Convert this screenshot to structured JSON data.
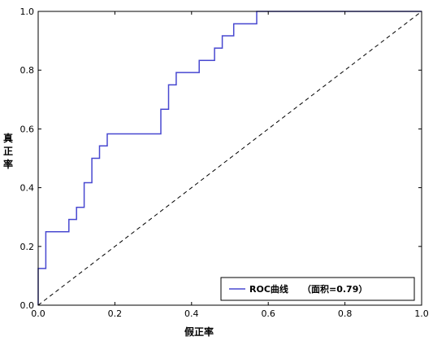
{
  "chart_data": {
    "type": "line",
    "xlabel": "假正率",
    "ylabel": "真正率",
    "xlim": [
      0,
      1
    ],
    "ylim": [
      0,
      1
    ],
    "x_ticks": [
      "0.0",
      "0.2",
      "0.4",
      "0.6",
      "0.8",
      "1.0"
    ],
    "y_ticks": [
      "0.0",
      "0.2",
      "0.4",
      "0.6",
      "0.8",
      "1.0"
    ],
    "grid": false,
    "legend_position": "bottom-right",
    "legend": {
      "series_name": "ROC曲线",
      "area_text": "（面积=0.79）"
    },
    "series": [
      {
        "name": "ROC曲线",
        "color": "#4848d0",
        "style": "solid",
        "x": [
          0,
          0,
          0.02,
          0.02,
          0.08,
          0.08,
          0.1,
          0.1,
          0.12,
          0.12,
          0.14,
          0.14,
          0.16,
          0.16,
          0.18,
          0.18,
          0.32,
          0.32,
          0.34,
          0.34,
          0.36,
          0.36,
          0.42,
          0.42,
          0.46,
          0.46,
          0.48,
          0.48,
          0.51,
          0.51,
          0.57,
          0.57,
          1.0
        ],
        "y": [
          0,
          0.125,
          0.125,
          0.25,
          0.25,
          0.292,
          0.292,
          0.333,
          0.333,
          0.417,
          0.417,
          0.5,
          0.5,
          0.542,
          0.542,
          0.583,
          0.583,
          0.667,
          0.667,
          0.75,
          0.75,
          0.792,
          0.792,
          0.833,
          0.833,
          0.875,
          0.875,
          0.917,
          0.917,
          0.958,
          0.958,
          1.0,
          1.0
        ]
      },
      {
        "name": "",
        "color": "#000000",
        "style": "dashed",
        "x": [
          0,
          1
        ],
        "y": [
          0,
          1
        ]
      }
    ]
  }
}
